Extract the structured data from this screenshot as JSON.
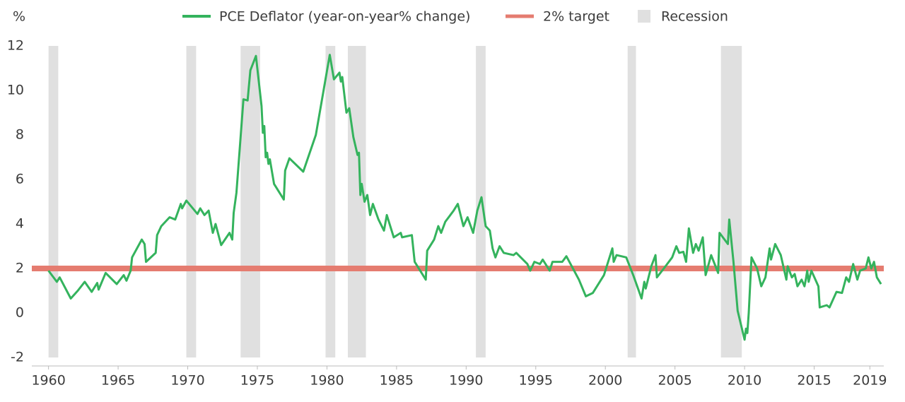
{
  "chart_data": {
    "type": "line",
    "y_label": "%",
    "x": [
      1960.0,
      1960.6,
      1960.8,
      1961.6,
      1962.1,
      1962.6,
      1963.1,
      1963.5,
      1963.6,
      1964.1,
      1964.9,
      1965.4,
      1965.6,
      1965.9,
      1966.0,
      1966.7,
      1966.9,
      1967.0,
      1967.7,
      1967.8,
      1968.1,
      1968.7,
      1969.1,
      1969.5,
      1969.6,
      1969.9,
      1970.7,
      1970.9,
      1971.2,
      1971.5,
      1971.8,
      1972.0,
      1972.4,
      1973.0,
      1973.2,
      1973.3,
      1973.5,
      1974.0,
      1974.3,
      1974.5,
      1974.9,
      1975.3,
      1975.4,
      1975.5,
      1975.6,
      1975.7,
      1975.8,
      1975.9,
      1976.2,
      1976.9,
      1977.0,
      1977.3,
      1978.3,
      1979.2,
      1980.2,
      1980.5,
      1980.9,
      1981.0,
      1981.1,
      1981.4,
      1981.6,
      1981.9,
      1982.2,
      1982.3,
      1982.4,
      1982.5,
      1982.7,
      1982.9,
      1983.1,
      1983.3,
      1983.7,
      1984.1,
      1984.3,
      1984.8,
      1985.3,
      1985.4,
      1986.1,
      1986.3,
      1987.1,
      1987.2,
      1987.7,
      1988.0,
      1988.2,
      1988.5,
      1989.1,
      1989.4,
      1989.8,
      1990.1,
      1990.5,
      1990.8,
      1991.1,
      1991.4,
      1991.7,
      1991.9,
      1992.1,
      1992.4,
      1992.7,
      1993.4,
      1993.6,
      1994.4,
      1994.6,
      1994.9,
      1995.3,
      1995.5,
      1996.0,
      1996.2,
      1996.9,
      1997.2,
      1998.1,
      1998.6,
      1999.1,
      1999.9,
      2000.5,
      2000.6,
      2000.8,
      2001.5,
      2002.0,
      2002.6,
      2002.8,
      2002.9,
      2003.3,
      2003.6,
      2003.7,
      2004.2,
      2004.8,
      2005.1,
      2005.3,
      2005.6,
      2005.8,
      2006.0,
      2006.3,
      2006.5,
      2006.7,
      2007.0,
      2007.2,
      2007.6,
      2008.1,
      2008.2,
      2008.8,
      2008.9,
      2009.2,
      2009.5,
      2010.0,
      2010.1,
      2010.2,
      2010.3,
      2010.5,
      2010.9,
      2011.2,
      2011.5,
      2011.8,
      2011.9,
      2012.2,
      2012.6,
      2013.0,
      2013.1,
      2013.4,
      2013.6,
      2013.8,
      2014.1,
      2014.3,
      2014.4,
      2014.5,
      2014.6,
      2014.8,
      2015.3,
      2015.4,
      2015.9,
      2016.1,
      2016.6,
      2017.0,
      2017.3,
      2017.5,
      2017.8,
      2018.1,
      2018.3,
      2018.7,
      2018.9,
      2019.1,
      2019.3,
      2019.5,
      2019.8
    ],
    "series": [
      {
        "name": "PCE Deflator (year-on-year% change)",
        "color": "#34b35d",
        "values": [
          1.9,
          1.4,
          1.6,
          0.65,
          1.0,
          1.4,
          0.95,
          1.35,
          1.05,
          1.8,
          1.3,
          1.7,
          1.45,
          1.9,
          2.5,
          3.3,
          3.1,
          2.3,
          2.7,
          3.5,
          3.9,
          4.3,
          4.2,
          4.9,
          4.7,
          5.05,
          4.45,
          4.7,
          4.4,
          4.6,
          3.6,
          4.0,
          3.05,
          3.6,
          3.3,
          4.5,
          5.4,
          9.6,
          9.55,
          10.9,
          11.55,
          9.3,
          8.1,
          8.4,
          7.0,
          7.2,
          6.7,
          6.9,
          5.8,
          5.1,
          6.4,
          6.95,
          6.35,
          8.0,
          11.6,
          10.5,
          10.8,
          10.4,
          10.6,
          9.0,
          9.2,
          7.9,
          7.1,
          7.2,
          5.3,
          5.8,
          5.0,
          5.3,
          4.4,
          4.9,
          4.2,
          3.7,
          4.4,
          3.4,
          3.6,
          3.4,
          3.5,
          2.3,
          1.5,
          2.8,
          3.3,
          3.9,
          3.6,
          4.1,
          4.6,
          4.9,
          3.9,
          4.3,
          3.6,
          4.6,
          5.2,
          3.9,
          3.7,
          2.9,
          2.5,
          3.0,
          2.7,
          2.6,
          2.7,
          2.2,
          1.9,
          2.3,
          2.2,
          2.4,
          1.9,
          2.3,
          2.3,
          2.55,
          1.5,
          0.75,
          0.9,
          1.7,
          2.9,
          2.3,
          2.6,
          2.5,
          1.7,
          0.65,
          1.4,
          1.1,
          2.1,
          2.6,
          1.6,
          2.0,
          2.5,
          3.0,
          2.7,
          2.75,
          2.3,
          3.8,
          2.7,
          3.1,
          2.8,
          3.4,
          1.7,
          2.6,
          1.8,
          3.6,
          3.1,
          4.2,
          2.3,
          0.1,
          -1.2,
          -0.7,
          -0.9,
          0.0,
          2.5,
          2.0,
          1.2,
          1.6,
          2.9,
          2.4,
          3.1,
          2.6,
          1.5,
          2.1,
          1.6,
          1.75,
          1.2,
          1.5,
          1.2,
          1.5,
          1.9,
          1.4,
          1.9,
          1.2,
          0.25,
          0.35,
          0.25,
          0.95,
          0.9,
          1.6,
          1.4,
          2.2,
          1.5,
          1.9,
          2.0,
          2.5,
          2.0,
          2.3,
          1.6,
          1.3
        ]
      }
    ],
    "reference_line": {
      "name": "2% target",
      "value": 2,
      "color": "#e57c70"
    },
    "recessions": {
      "name": "Recession",
      "color": "#e0e0e0",
      "periods": [
        [
          1960.0,
          1960.7
        ],
        [
          1969.9,
          1970.6
        ],
        [
          1973.8,
          1975.2
        ],
        [
          1979.9,
          1980.6
        ],
        [
          1981.5,
          1982.8
        ],
        [
          1990.7,
          1991.4
        ],
        [
          2001.6,
          2002.2
        ],
        [
          2008.3,
          2009.8
        ]
      ]
    },
    "xlim": [
      1958.8,
      2020.0
    ],
    "ylim": [
      -2,
      12
    ],
    "xticks": [
      1960,
      1965,
      1970,
      1975,
      1980,
      1985,
      1990,
      1995,
      2000,
      2005,
      2010,
      2015,
      2019
    ],
    "yticks": [
      -2,
      0,
      2,
      4,
      6,
      8,
      10,
      12
    ]
  }
}
